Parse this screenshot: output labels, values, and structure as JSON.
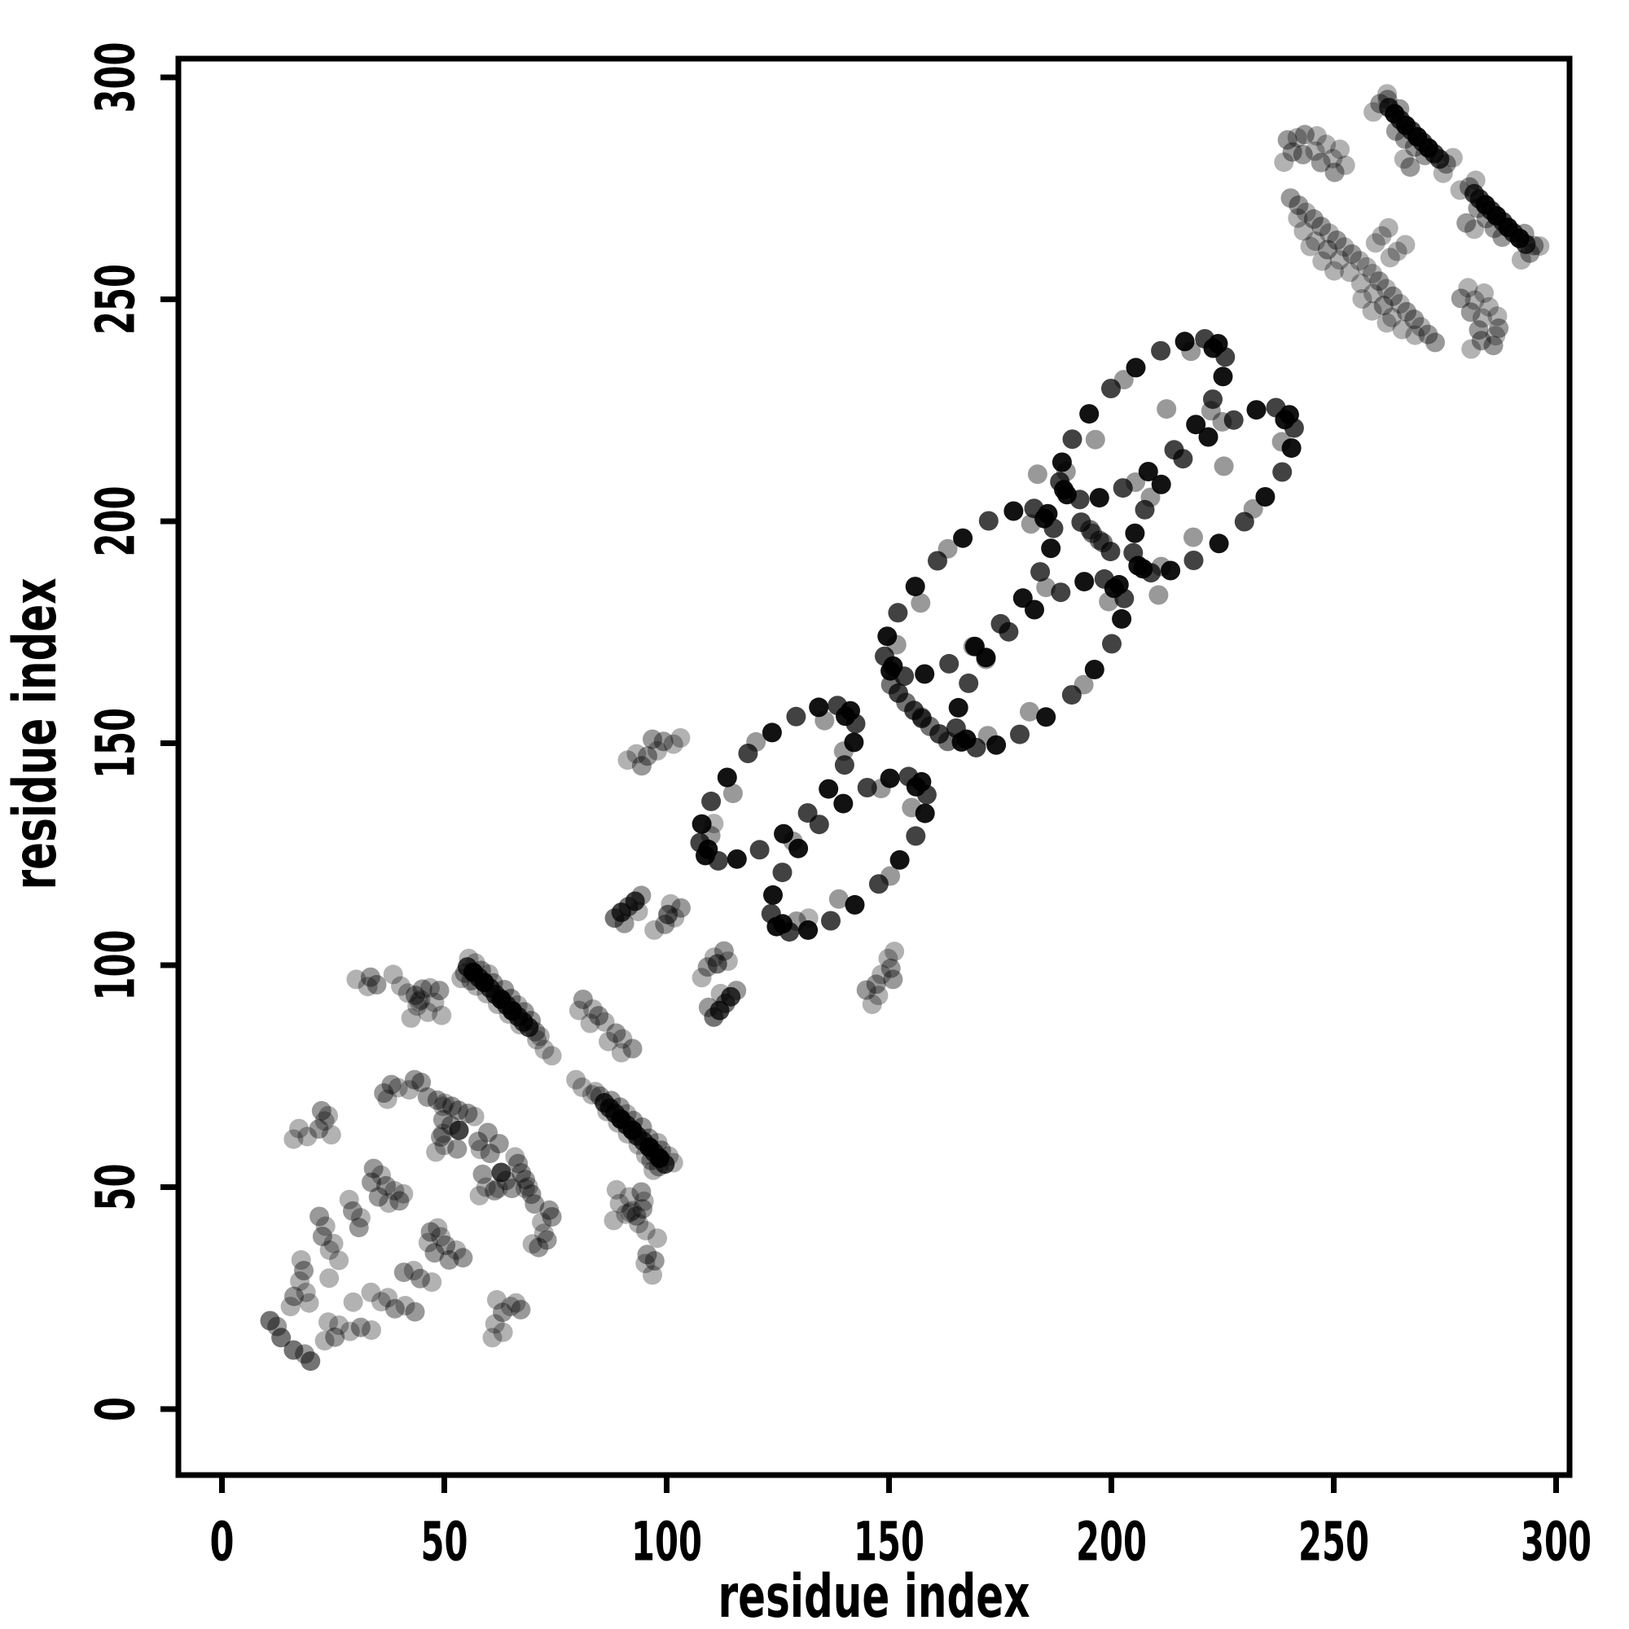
{
  "figure": {
    "background": "#ffffff",
    "foreground": "#000000"
  },
  "chart_data": {
    "type": "scatter",
    "title": "",
    "xlabel": "residue index",
    "ylabel": "residue index",
    "xlim": [
      0,
      300
    ],
    "ylim": [
      0,
      300
    ],
    "xticks": [
      "0",
      "50",
      "100",
      "150",
      "200",
      "250",
      "300"
    ],
    "yticks": [
      "0",
      "50",
      "100",
      "150",
      "200",
      "250",
      "300"
    ],
    "grid": false,
    "legend": "none",
    "symmetric": true,
    "marker": {
      "shape": "circle",
      "radius_px": 12,
      "color": "#000000"
    },
    "shade_alphas": [
      0.93,
      0.74,
      0.55,
      0.4,
      0.3
    ],
    "points": [
      [
        55.2,
        99.6,
        1
      ],
      [
        56.5,
        98.4,
        0
      ],
      [
        57.8,
        97.2,
        1
      ],
      [
        59.0,
        96.1,
        0
      ],
      [
        60.3,
        94.8,
        1
      ],
      [
        61.5,
        93.4,
        1
      ],
      [
        62.8,
        92.3,
        0
      ],
      [
        64.0,
        91.0,
        1
      ],
      [
        65.3,
        89.7,
        0
      ],
      [
        66.6,
        88.4,
        1
      ],
      [
        67.8,
        87.2,
        1
      ],
      [
        69.0,
        86.0,
        1
      ],
      [
        54.6,
        98.2,
        3
      ],
      [
        56.0,
        96.5,
        3
      ],
      [
        58.3,
        98.8,
        3
      ],
      [
        60.0,
        98.0,
        4
      ],
      [
        61.0,
        96.0,
        3
      ],
      [
        63.5,
        94.5,
        3
      ],
      [
        65.0,
        92.5,
        3
      ],
      [
        66.5,
        91.0,
        4
      ],
      [
        68.0,
        89.5,
        3
      ],
      [
        69.5,
        87.5,
        3
      ],
      [
        70.5,
        85.0,
        3
      ],
      [
        71.5,
        84.0,
        4
      ],
      [
        55.5,
        101.5,
        4
      ],
      [
        57.0,
        100.5,
        4
      ],
      [
        53.8,
        97.0,
        4
      ],
      [
        57.2,
        95.3,
        4
      ],
      [
        59.5,
        93.6,
        4
      ],
      [
        62.0,
        91.2,
        4
      ],
      [
        64.5,
        89.0,
        4
      ],
      [
        67.0,
        86.6,
        4
      ],
      [
        70.8,
        83.2,
        4
      ],
      [
        72.5,
        81.0,
        4
      ],
      [
        74.2,
        79.6,
        4
      ],
      [
        33.4,
        97.3,
        3
      ],
      [
        34.8,
        95.6,
        3
      ],
      [
        32.8,
        95.2,
        4
      ],
      [
        30.2,
        96.8,
        4
      ],
      [
        43.5,
        93.2,
        3
      ],
      [
        45.1,
        94.6,
        3
      ],
      [
        46.8,
        94.9,
        4
      ],
      [
        48.9,
        94.3,
        3
      ],
      [
        44.3,
        91.8,
        4
      ],
      [
        38.5,
        97.9,
        4
      ],
      [
        36.4,
        71.2,
        3
      ],
      [
        38.1,
        73.1,
        3
      ],
      [
        39.6,
        72.4,
        4
      ],
      [
        43.3,
        74.2,
        3
      ],
      [
        44.8,
        73.6,
        3
      ],
      [
        42.1,
        71.9,
        4
      ],
      [
        37.2,
        69.8,
        4
      ],
      [
        46.2,
        70.3,
        3
      ],
      [
        48.4,
        69.6,
        3
      ],
      [
        50.1,
        68.9,
        4
      ],
      [
        51.7,
        68.2,
        3
      ],
      [
        53.2,
        67.3,
        3
      ],
      [
        55.3,
        66.6,
        3
      ],
      [
        56.8,
        65.9,
        4
      ],
      [
        22.4,
        67.2,
        3
      ],
      [
        23.1,
        64.9,
        4
      ],
      [
        21.8,
        63.1,
        3
      ],
      [
        24.6,
        61.8,
        4
      ],
      [
        23.9,
        66.1,
        4
      ],
      [
        17.3,
        63.2,
        4
      ],
      [
        19.2,
        61.4,
        4
      ],
      [
        16.1,
        60.8,
        4
      ],
      [
        49.2,
        61.3,
        3
      ],
      [
        50.0,
        59.4,
        4
      ],
      [
        52.9,
        58.6,
        3
      ],
      [
        48.1,
        57.9,
        4
      ],
      [
        57.6,
        60.3,
        3
      ],
      [
        53.3,
        62.8,
        1
      ],
      [
        51.5,
        63.9,
        3
      ],
      [
        49.7,
        62.1,
        4
      ],
      [
        49.7,
        65.2,
        3
      ],
      [
        49.7,
        68.2,
        4
      ],
      [
        59.8,
        62.3,
        3
      ],
      [
        58.1,
        58.5,
        4
      ],
      [
        34.1,
        54.2,
        3
      ],
      [
        35.8,
        52.7,
        4
      ],
      [
        33.6,
        51.1,
        3
      ],
      [
        36.9,
        50.3,
        3
      ],
      [
        38.8,
        49.2,
        4
      ],
      [
        35.2,
        47.8,
        3
      ],
      [
        37.5,
        46.4,
        4
      ],
      [
        39.9,
        46.9,
        3
      ],
      [
        40.8,
        48.5,
        4
      ],
      [
        29.4,
        44.6,
        3
      ],
      [
        31.2,
        43.1,
        4
      ],
      [
        28.6,
        47.2,
        4
      ],
      [
        30.8,
        40.9,
        3
      ],
      [
        21.9,
        43.4,
        3
      ],
      [
        23.3,
        41.2,
        4
      ],
      [
        22.6,
        38.9,
        3
      ],
      [
        25.1,
        37.3,
        4
      ],
      [
        24.2,
        35.8,
        4
      ],
      [
        26.3,
        33.5,
        4
      ],
      [
        17.8,
        33.6,
        4
      ],
      [
        18.4,
        31.2,
        3
      ],
      [
        17.5,
        28.8,
        4
      ],
      [
        18.9,
        26.3,
        4
      ],
      [
        19.6,
        23.9,
        4
      ],
      [
        16.2,
        25.4,
        3
      ],
      [
        15.4,
        23.1,
        4
      ],
      [
        10.8,
        19.9,
        2
      ],
      [
        12.4,
        18.6,
        3
      ],
      [
        13.3,
        16.1,
        2
      ],
      [
        24.1,
        29.5,
        4
      ],
      [
        81.2,
        92.3,
        3
      ],
      [
        83.4,
        90.1,
        4
      ],
      [
        84.7,
        88.6,
        3
      ],
      [
        86.1,
        87.2,
        4
      ],
      [
        80.3,
        89.8,
        4
      ],
      [
        82.8,
        86.9,
        4
      ],
      [
        40.2,
        95.3,
        4
      ],
      [
        41.8,
        93.7,
        4
      ],
      [
        43.9,
        90.8,
        4
      ],
      [
        46.3,
        89.4,
        4
      ],
      [
        44.7,
        92.2,
        4
      ],
      [
        47.8,
        91.6,
        4
      ],
      [
        49.4,
        88.7,
        4
      ],
      [
        42.5,
        88.1,
        4
      ],
      [
        88.3,
        110.6,
        2
      ],
      [
        89.8,
        111.9,
        1
      ],
      [
        91.4,
        113.2,
        2
      ],
      [
        92.9,
        114.4,
        1
      ],
      [
        94.3,
        115.7,
        3
      ],
      [
        90.5,
        109.4,
        3
      ],
      [
        93.6,
        112.1,
        4
      ],
      [
        99.6,
        109.2,
        3
      ],
      [
        101.8,
        110.7,
        4
      ],
      [
        103.2,
        112.9,
        3
      ],
      [
        100.9,
        113.8,
        4
      ],
      [
        97.2,
        107.9,
        4
      ],
      [
        100.3,
        111.4,
        2
      ],
      [
        96.8,
        150.9,
        3
      ],
      [
        99.3,
        150.4,
        3
      ],
      [
        93.2,
        147.6,
        4
      ],
      [
        95.7,
        147.1,
        3
      ],
      [
        91.2,
        146.2,
        4
      ],
      [
        94.4,
        144.9,
        3
      ],
      [
        101.5,
        149.8,
        4
      ],
      [
        103.1,
        151.2,
        4
      ],
      [
        97.9,
        148.3,
        4
      ],
      [
        110.6,
        131.9,
        4
      ],
      [
        141.3,
        157.3,
        0
      ],
      [
        138.4,
        158.5,
        1
      ],
      [
        134.2,
        158.1,
        0
      ],
      [
        129.1,
        156.0,
        1
      ],
      [
        123.7,
        152.4,
        0
      ],
      [
        118.3,
        147.7,
        1
      ],
      [
        113.6,
        142.3,
        0
      ],
      [
        110.0,
        136.9,
        1
      ],
      [
        107.9,
        131.8,
        0
      ],
      [
        107.5,
        127.6,
        1
      ],
      [
        108.7,
        124.7,
        0
      ],
      [
        111.6,
        123.5,
        1
      ],
      [
        115.8,
        123.9,
        0
      ],
      [
        120.9,
        126.0,
        1
      ],
      [
        126.3,
        129.6,
        0
      ],
      [
        131.7,
        134.3,
        1
      ],
      [
        136.4,
        139.7,
        0
      ],
      [
        140.0,
        145.1,
        1
      ],
      [
        142.1,
        150.2,
        0
      ],
      [
        142.5,
        154.4,
        1
      ],
      [
        120.1,
        150.3,
        3
      ],
      [
        135.5,
        155.1,
        3
      ],
      [
        109.9,
        129.2,
        3
      ],
      [
        128.4,
        127.9,
        3
      ],
      [
        139.8,
        148.2,
        3
      ],
      [
        114.9,
        138.7,
        3
      ],
      [
        140.2,
        156.1,
        0
      ],
      [
        109.3,
        126.1,
        0
      ],
      [
        185.7,
        201.7,
        0
      ],
      [
        182.6,
        202.9,
        1
      ],
      [
        178.0,
        202.3,
        0
      ],
      [
        172.4,
        200.1,
        1
      ],
      [
        166.6,
        196.2,
        0
      ],
      [
        160.9,
        191.1,
        1
      ],
      [
        155.9,
        185.3,
        0
      ],
      [
        152.0,
        179.4,
        1
      ],
      [
        149.6,
        174.1,
        0
      ],
      [
        149.0,
        169.6,
        1
      ],
      [
        150.3,
        166.3,
        0
      ],
      [
        153.4,
        165.1,
        1
      ],
      [
        158.0,
        165.6,
        0
      ],
      [
        163.5,
        167.9,
        1
      ],
      [
        169.3,
        171.8,
        0
      ],
      [
        175.1,
        176.9,
        1
      ],
      [
        180.1,
        182.7,
        0
      ],
      [
        184.0,
        188.6,
        1
      ],
      [
        186.4,
        193.9,
        0
      ],
      [
        187.0,
        198.4,
        1
      ],
      [
        163.2,
        193.8,
        3
      ],
      [
        181.9,
        199.4,
        3
      ],
      [
        151.7,
        172.2,
        3
      ],
      [
        171.8,
        168.9,
        3
      ],
      [
        185.3,
        185.1,
        3
      ],
      [
        157.1,
        181.6,
        3
      ],
      [
        184.9,
        200.6,
        0
      ],
      [
        150.9,
        167.4,
        0
      ],
      [
        224.0,
        240.0,
        0
      ],
      [
        221.0,
        241.1,
        1
      ],
      [
        216.5,
        240.5,
        0
      ],
      [
        211.1,
        238.4,
        1
      ],
      [
        205.5,
        234.6,
        0
      ],
      [
        199.9,
        229.9,
        1
      ],
      [
        195.0,
        224.2,
        0
      ],
      [
        191.2,
        218.5,
        1
      ],
      [
        188.9,
        213.3,
        0
      ],
      [
        188.4,
        208.9,
        1
      ],
      [
        190.0,
        206.0,
        0
      ],
      [
        192.9,
        204.9,
        1
      ],
      [
        197.3,
        205.3,
        0
      ],
      [
        202.6,
        207.5,
        1
      ],
      [
        208.3,
        211.2,
        0
      ],
      [
        214.1,
        216.1,
        1
      ],
      [
        219.0,
        221.8,
        0
      ],
      [
        222.8,
        227.5,
        1
      ],
      [
        225.1,
        232.6,
        0
      ],
      [
        225.6,
        237.0,
        1
      ],
      [
        202.8,
        231.9,
        3
      ],
      [
        217.9,
        238.3,
        3
      ],
      [
        189.8,
        211.2,
        3
      ],
      [
        205.4,
        208.8,
        3
      ],
      [
        222.4,
        224.9,
        3
      ],
      [
        196.4,
        218.4,
        3
      ],
      [
        222.9,
        239.0,
        0
      ],
      [
        189.3,
        207.1,
        0
      ],
      [
        152.1,
        161.3,
        1
      ],
      [
        153.8,
        159.2,
        2
      ],
      [
        155.6,
        157.4,
        1
      ],
      [
        157.3,
        155.9,
        3
      ],
      [
        150.4,
        163.2,
        2
      ],
      [
        193.2,
        199.8,
        1
      ],
      [
        195.7,
        197.3,
        2
      ],
      [
        198.1,
        195.2,
        2
      ],
      [
        183.4,
        210.6,
        3
      ],
      [
        212.4,
        225.3,
        3
      ],
      [
        262.4,
        293.2,
        1
      ],
      [
        263.7,
        291.8,
        0
      ],
      [
        265.0,
        290.4,
        1
      ],
      [
        266.2,
        289.2,
        0
      ],
      [
        267.5,
        288.0,
        1
      ],
      [
        268.8,
        286.6,
        0
      ],
      [
        270.0,
        285.4,
        1
      ],
      [
        271.3,
        284.1,
        0
      ],
      [
        272.6,
        282.8,
        1
      ],
      [
        273.8,
        281.6,
        1
      ],
      [
        264.0,
        287.9,
        3
      ],
      [
        266.0,
        286.1,
        3
      ],
      [
        268.2,
        284.3,
        3
      ],
      [
        270.5,
        282.4,
        3
      ],
      [
        262.1,
        295.0,
        3
      ],
      [
        264.8,
        292.9,
        3
      ],
      [
        267.2,
        279.8,
        3
      ],
      [
        265.8,
        281.6,
        4
      ],
      [
        260.4,
        294.1,
        3
      ],
      [
        262.0,
        296.3,
        4
      ],
      [
        258.9,
        292.2,
        4
      ],
      [
        275.3,
        280.5,
        3
      ],
      [
        276.8,
        281.9,
        4
      ],
      [
        274.6,
        278.4,
        4
      ],
      [
        239.6,
        285.9,
        3
      ],
      [
        241.8,
        286.4,
        4
      ],
      [
        243.5,
        287.1,
        3
      ],
      [
        246.2,
        286.8,
        4
      ],
      [
        240.7,
        283.2,
        3
      ],
      [
        243.1,
        282.6,
        3
      ],
      [
        245.8,
        283.4,
        4
      ],
      [
        248.3,
        284.9,
        4
      ],
      [
        247.1,
        280.8,
        3
      ],
      [
        249.8,
        281.7,
        4
      ],
      [
        251.4,
        283.8,
        4
      ],
      [
        252.6,
        280.2,
        4
      ],
      [
        250.2,
        278.6,
        3
      ],
      [
        238.8,
        280.9,
        4
      ],
      [
        240.3,
        272.8,
        3
      ],
      [
        242.1,
        271.2,
        3
      ],
      [
        243.8,
        269.6,
        4
      ],
      [
        245.5,
        268.1,
        3
      ],
      [
        247.2,
        266.4,
        3
      ],
      [
        249.0,
        264.9,
        4
      ],
      [
        250.7,
        263.3,
        3
      ],
      [
        252.4,
        261.8,
        4
      ],
      [
        254.1,
        260.2,
        3
      ],
      [
        255.8,
        258.7,
        4
      ],
      [
        257.4,
        257.3,
        4
      ],
      [
        243.2,
        265.4,
        4
      ],
      [
        245.9,
        263.1,
        4
      ],
      [
        248.6,
        261.2,
        3
      ],
      [
        251.3,
        258.9,
        4
      ],
      [
        244.7,
        261.9,
        4
      ],
      [
        247.4,
        258.6,
        4
      ],
      [
        250.1,
        256.4,
        4
      ],
      [
        253.6,
        256.1,
        4
      ],
      [
        241.9,
        268.3,
        4
      ],
      [
        260.8,
        264.3,
        4
      ],
      [
        262.3,
        266.1,
        4
      ],
      [
        259.4,
        262.7,
        4
      ]
    ]
  }
}
